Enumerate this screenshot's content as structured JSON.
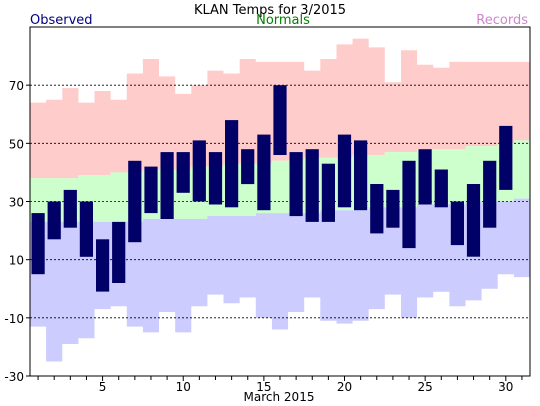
{
  "chart_data": {
    "type": "bar",
    "title": "KLAN Temps for 3/2015",
    "xlabel": "March 2015",
    "ylabel": "",
    "legend": [
      "Observed",
      "Normals",
      "Records"
    ],
    "colors": {
      "observed": "#000066",
      "normals": "#ccffcc",
      "records_high": "#ffcccc",
      "records_low": "#ccccff",
      "legend_observed": "#000080",
      "legend_normals": "#008000",
      "legend_records": "#cc88cc"
    },
    "xlim": [
      0.5,
      31.5
    ],
    "ylim": [
      -30,
      90
    ],
    "yticks": [
      -30,
      -10,
      10,
      30,
      50,
      70
    ],
    "xticks": [
      5,
      10,
      15,
      20,
      25,
      30
    ],
    "grid_y": [
      -10,
      10,
      30,
      50,
      70
    ],
    "days": [
      1,
      2,
      3,
      4,
      5,
      6,
      7,
      8,
      9,
      10,
      11,
      12,
      13,
      14,
      15,
      16,
      17,
      18,
      19,
      20,
      21,
      22,
      23,
      24,
      25,
      26,
      27,
      28,
      29,
      30,
      31
    ],
    "observed_high": [
      26,
      30,
      34,
      30,
      17,
      23,
      44,
      42,
      47,
      47,
      51,
      47,
      58,
      48,
      53,
      70,
      47,
      48,
      43,
      53,
      51,
      36,
      34,
      44,
      48,
      41,
      30,
      36,
      44,
      56,
      null
    ],
    "observed_low": [
      5,
      17,
      21,
      11,
      -1,
      2,
      16,
      26,
      24,
      33,
      30,
      29,
      28,
      36,
      27,
      46,
      25,
      23,
      23,
      28,
      27,
      19,
      21,
      14,
      29,
      28,
      15,
      11,
      21,
      34,
      null
    ],
    "normal_high": [
      38,
      38,
      38,
      39,
      39,
      40,
      40,
      41,
      41,
      41,
      42,
      42,
      43,
      43,
      43,
      44,
      44,
      45,
      45,
      45,
      46,
      46,
      47,
      47,
      48,
      48,
      48,
      49,
      49,
      50,
      51
    ],
    "normal_low": [
      23,
      23,
      23,
      23,
      23,
      23,
      23,
      24,
      24,
      24,
      24,
      25,
      25,
      25,
      26,
      26,
      26,
      26,
      27,
      27,
      27,
      28,
      28,
      28,
      29,
      29,
      29,
      30,
      30,
      30,
      31
    ],
    "record_high": [
      64,
      65,
      69,
      64,
      68,
      65,
      74,
      79,
      73,
      67,
      70,
      75,
      74,
      79,
      78,
      78,
      78,
      75,
      79,
      84,
      86,
      83,
      71,
      82,
      77,
      76,
      78,
      78,
      78,
      78,
      78
    ],
    "record_low": [
      -13,
      -25,
      -19,
      -17,
      -7,
      -6,
      -13,
      -15,
      -8,
      -15,
      -6,
      -2,
      -5,
      -3,
      -10,
      -14,
      -8,
      -3,
      -11,
      -12,
      -11,
      -7,
      -2,
      -10,
      -3,
      -1,
      -6,
      -4,
      0,
      5,
      4
    ]
  }
}
